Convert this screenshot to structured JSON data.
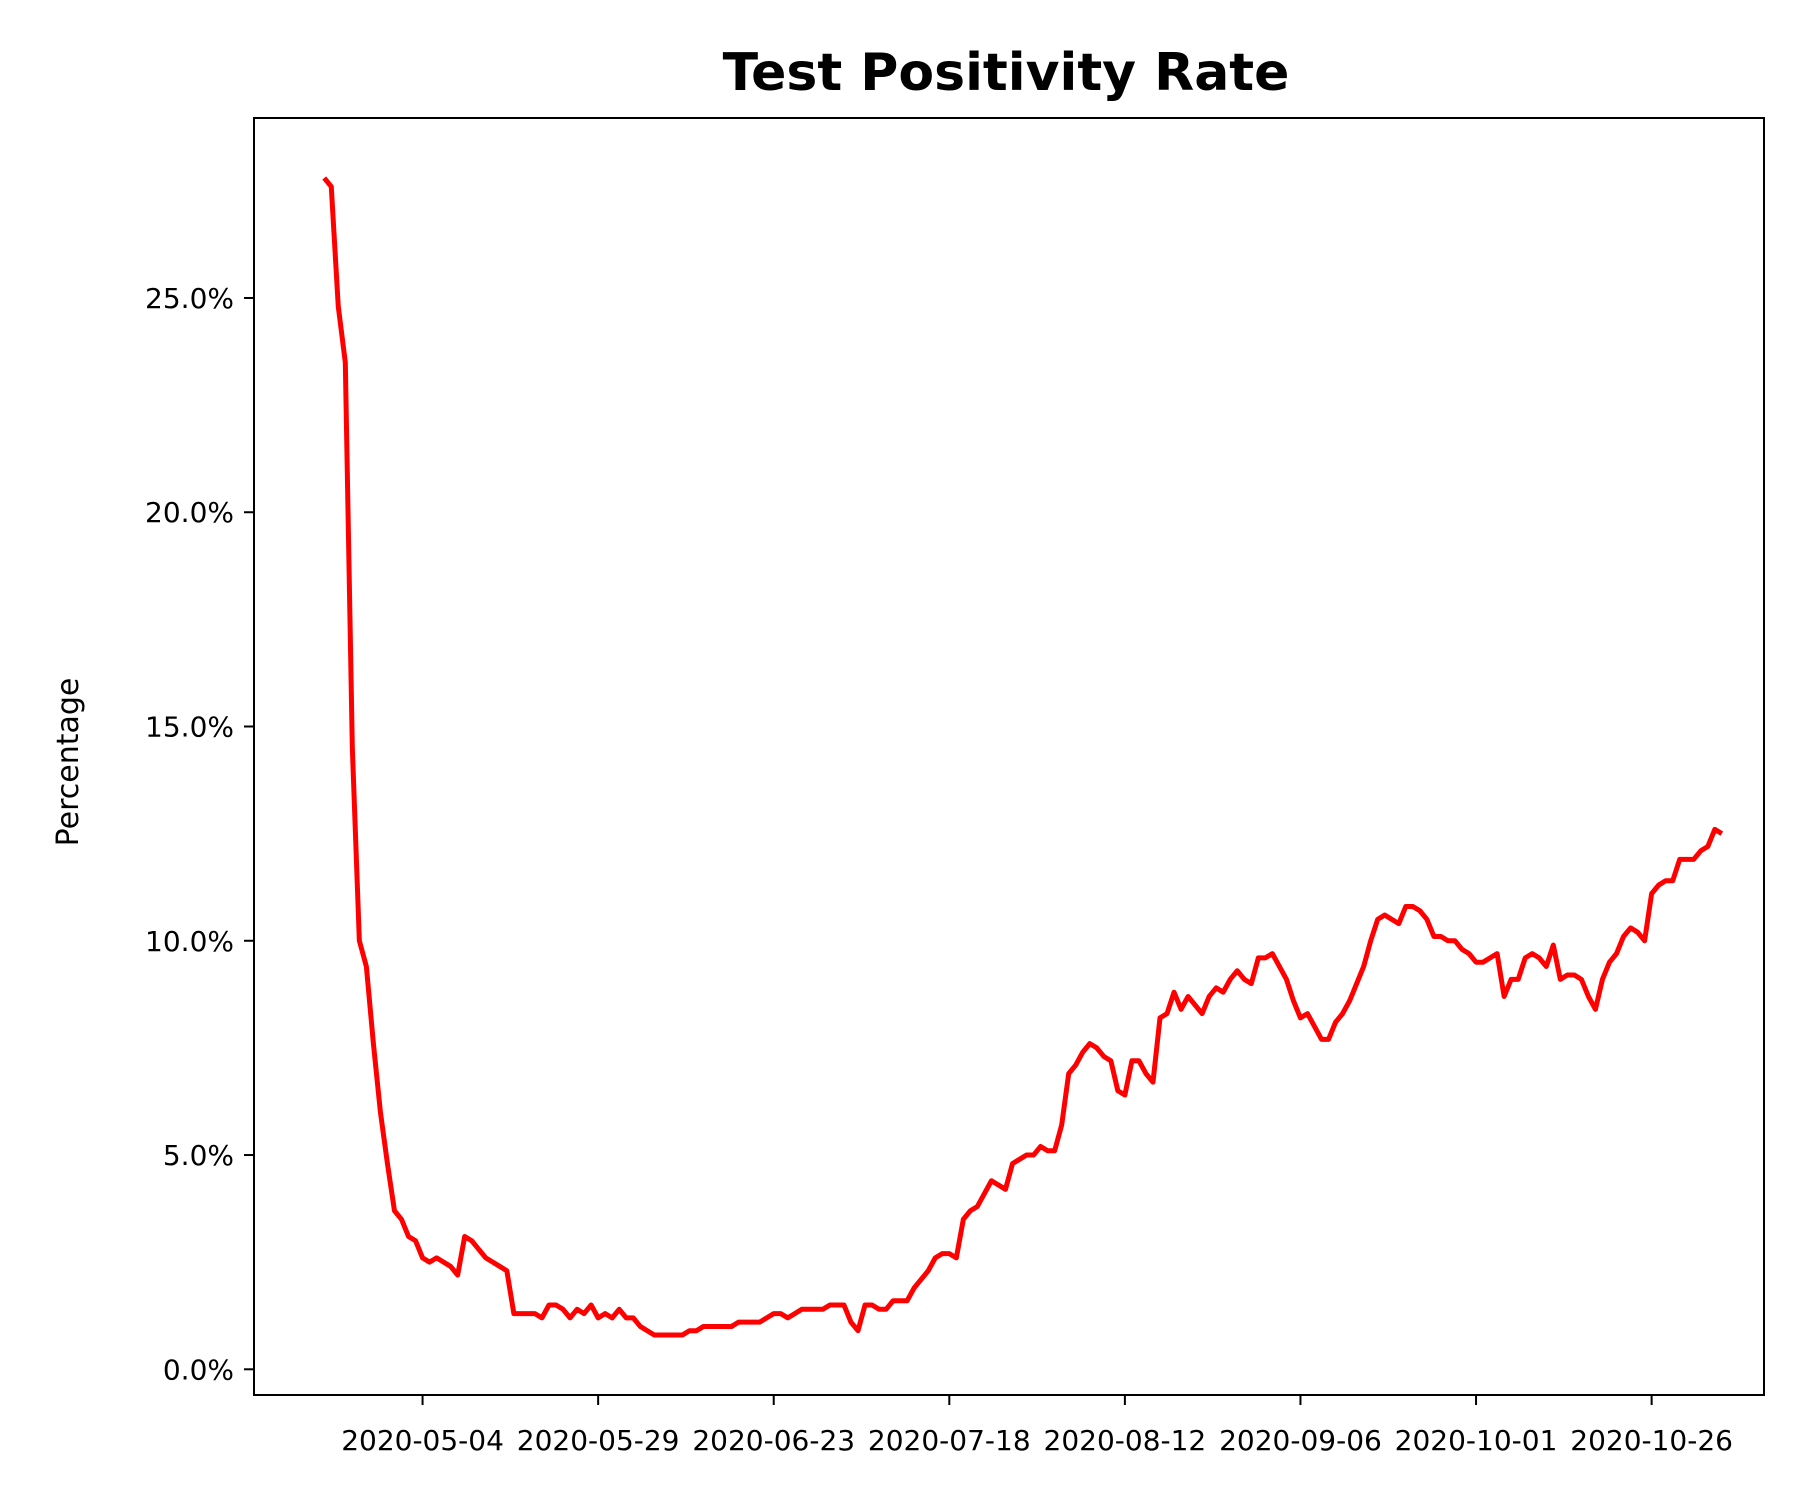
{
  "chart_data": {
    "type": "line",
    "title": "Test Positivity Rate",
    "ylabel": "Percentage",
    "xlabel": "",
    "ylim": [
      -0.6,
      29.2
    ],
    "xlim": [
      "2020-04-10",
      "2020-11-11"
    ],
    "x_ticks": [
      "2020-05-04",
      "2020-05-29",
      "2020-06-23",
      "2020-07-18",
      "2020-08-12",
      "2020-09-06",
      "2020-10-01",
      "2020-10-26"
    ],
    "y_ticks": [
      0,
      5,
      10,
      15,
      20,
      25
    ],
    "y_tick_labels": [
      "0.0%",
      "5.0%",
      "10.0%",
      "15.0%",
      "20.0%",
      "25.0%"
    ],
    "line_color": "#ff0000",
    "grid": false,
    "legend": "none",
    "series": [
      {
        "x_start": "2020-04-20",
        "x_step_days": 1,
        "values": [
          27.8,
          27.6,
          24.8,
          23.5,
          14.5,
          10.0,
          9.4,
          7.6,
          6.0,
          4.8,
          3.7,
          3.5,
          3.1,
          3.0,
          2.6,
          2.5,
          2.6,
          2.5,
          2.4,
          2.2,
          3.1,
          3.0,
          2.8,
          2.6,
          2.5,
          2.4,
          2.3,
          1.3,
          1.3,
          1.3,
          1.3,
          1.2,
          1.5,
          1.5,
          1.4,
          1.2,
          1.4,
          1.3,
          1.5,
          1.2,
          1.3,
          1.2,
          1.4,
          1.2,
          1.2,
          1.0,
          0.9,
          0.8,
          0.8,
          0.8,
          0.8,
          0.8,
          0.9,
          0.9,
          1.0,
          1.0,
          1.0,
          1.0,
          1.0,
          1.1,
          1.1,
          1.1,
          1.1,
          1.2,
          1.3,
          1.3,
          1.2,
          1.3,
          1.4,
          1.4,
          1.4,
          1.4,
          1.5,
          1.5,
          1.5,
          1.1,
          0.9,
          1.5,
          1.5,
          1.4,
          1.4,
          1.6,
          1.6,
          1.6,
          1.9,
          2.1,
          2.3,
          2.6,
          2.7,
          2.7,
          2.6,
          3.5,
          3.7,
          3.8,
          4.1,
          4.4,
          4.3,
          4.2,
          4.8,
          4.9,
          5.0,
          5.0,
          5.2,
          5.1,
          5.1,
          5.7,
          6.9,
          7.1,
          7.4,
          7.6,
          7.5,
          7.3,
          7.2,
          6.5,
          6.4,
          7.2,
          7.2,
          6.9,
          6.7,
          8.2,
          8.3,
          8.8,
          8.4,
          8.7,
          8.5,
          8.3,
          8.7,
          8.9,
          8.8,
          9.1,
          9.3,
          9.1,
          9.0,
          9.6,
          9.6,
          9.7,
          9.4,
          9.1,
          8.6,
          8.2,
          8.3,
          8.0,
          7.7,
          7.7,
          8.1,
          8.3,
          8.6,
          9.0,
          9.4,
          10.0,
          10.5,
          10.6,
          10.5,
          10.4,
          10.8,
          10.8,
          10.7,
          10.5,
          10.1,
          10.1,
          10.0,
          10.0,
          9.8,
          9.7,
          9.5,
          9.5,
          9.6,
          9.7,
          8.7,
          9.1,
          9.1,
          9.6,
          9.7,
          9.6,
          9.4,
          9.9,
          9.1,
          9.2,
          9.2,
          9.1,
          8.7,
          8.4,
          9.1,
          9.5,
          9.7,
          10.1,
          10.3,
          10.2,
          10.0,
          11.1,
          11.3,
          11.4,
          11.4,
          11.9,
          11.9,
          11.9,
          12.1,
          12.2,
          12.6,
          12.5
        ]
      }
    ]
  }
}
